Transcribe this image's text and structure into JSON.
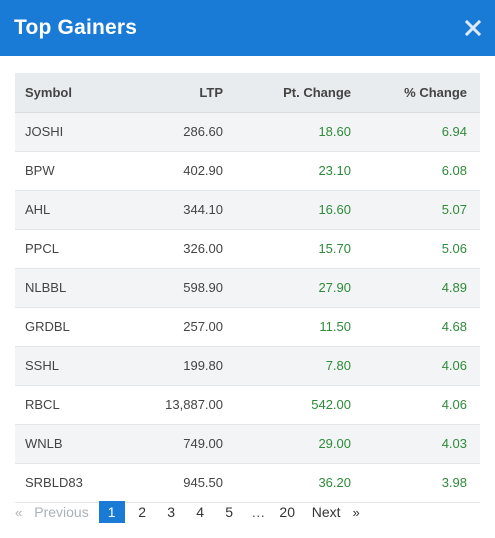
{
  "header": {
    "title": "Top Gainers"
  },
  "table": {
    "columns": {
      "symbol": "Symbol",
      "ltp": "LTP",
      "pt_change": "Pt. Change",
      "pct_change": "% Change"
    },
    "rows": [
      {
        "symbol": "JOSHI",
        "ltp": "286.60",
        "pt_change": "18.60",
        "pct_change": "6.94"
      },
      {
        "symbol": "BPW",
        "ltp": "402.90",
        "pt_change": "23.10",
        "pct_change": "6.08"
      },
      {
        "symbol": "AHL",
        "ltp": "344.10",
        "pt_change": "16.60",
        "pct_change": "5.07"
      },
      {
        "symbol": "PPCL",
        "ltp": "326.00",
        "pt_change": "15.70",
        "pct_change": "5.06"
      },
      {
        "symbol": "NLBBL",
        "ltp": "598.90",
        "pt_change": "27.90",
        "pct_change": "4.89"
      },
      {
        "symbol": "GRDBL",
        "ltp": "257.00",
        "pt_change": "11.50",
        "pct_change": "4.68"
      },
      {
        "symbol": "SSHL",
        "ltp": "199.80",
        "pt_change": "7.80",
        "pct_change": "4.06"
      },
      {
        "symbol": "RBCL",
        "ltp": "13,887.00",
        "pt_change": "542.00",
        "pct_change": "4.06"
      },
      {
        "symbol": "WNLB",
        "ltp": "749.00",
        "pt_change": "29.00",
        "pct_change": "4.03"
      },
      {
        "symbol": "SRBLD83",
        "ltp": "945.50",
        "pt_change": "36.20",
        "pct_change": "3.98"
      }
    ]
  },
  "pagination": {
    "prev_chevron": "«",
    "prev_label": "Previous",
    "pages": [
      "1",
      "2",
      "3",
      "4",
      "5"
    ],
    "ellipsis": "…",
    "last_page": "20",
    "next_label": "Next",
    "next_chevron": "»",
    "active_page": "1"
  },
  "colors": {
    "header_bg": "#1a7bd6",
    "positive": "#2e8b3a",
    "active_page_bg": "#1a7bd6"
  },
  "icons": {
    "close": "close-icon"
  }
}
